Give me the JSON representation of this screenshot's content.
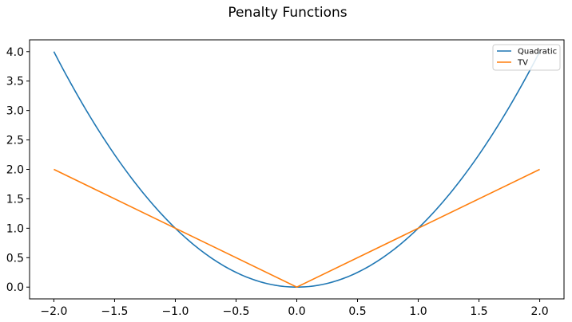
{
  "chart_data": {
    "type": "line",
    "title": "Penalty Functions",
    "xlabel": "",
    "ylabel": "",
    "xlim": [
      -2.2,
      2.2
    ],
    "ylim": [
      -0.2,
      4.2
    ],
    "xticks": [
      -2.0,
      -1.5,
      -1.0,
      -0.5,
      0.0,
      0.5,
      1.0,
      1.5,
      2.0
    ],
    "xtick_labels": [
      "−2.0",
      "−1.5",
      "−1.0",
      "−0.5",
      "0.0",
      "0.5",
      "1.0",
      "1.5",
      "2.0"
    ],
    "yticks": [
      0.0,
      0.5,
      1.0,
      1.5,
      2.0,
      2.5,
      3.0,
      3.5,
      4.0
    ],
    "ytick_labels": [
      "0.0",
      "0.5",
      "1.0",
      "1.5",
      "2.0",
      "2.5",
      "3.0",
      "3.5",
      "4.0"
    ],
    "legend_position": "top-right",
    "grid": false,
    "series": [
      {
        "name": "Quadratic",
        "color": "#1f77b4",
        "x": [
          -2.0,
          -1.75,
          -1.5,
          -1.25,
          -1.0,
          -0.75,
          -0.5,
          -0.25,
          0.0,
          0.25,
          0.5,
          0.75,
          1.0,
          1.25,
          1.5,
          1.75,
          2.0
        ],
        "y": [
          4.0,
          3.0625,
          2.25,
          1.5625,
          1.0,
          0.5625,
          0.25,
          0.0625,
          0.0,
          0.0625,
          0.25,
          0.5625,
          1.0,
          1.5625,
          2.25,
          3.0625,
          4.0
        ]
      },
      {
        "name": "TV",
        "color": "#ff7f0e",
        "x": [
          -2.0,
          0.0,
          2.0
        ],
        "y": [
          2.0,
          0.0,
          2.0
        ]
      }
    ]
  }
}
